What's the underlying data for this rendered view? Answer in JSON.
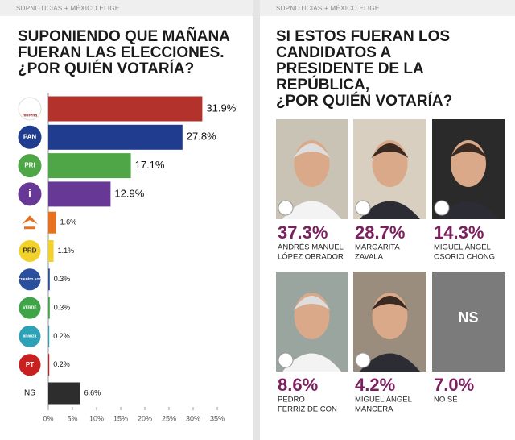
{
  "chart_data": [
    {
      "type": "bar",
      "source": "SDPNOTICIAS + MÉXICO ELIGE",
      "title": [
        "SUPONIENDO QUE MAÑANA",
        "FUERAN LAS ELECCIONES.",
        "¿POR QUIÉN VOTARÍA?"
      ],
      "categories": [
        "morena",
        "PAN",
        "PRI",
        "i",
        null,
        "PRD",
        "encuentro social",
        "VERDE",
        "alianza",
        "PT",
        "NS"
      ],
      "values": [
        31.9,
        27.8,
        17.1,
        12.9,
        1.6,
        1.1,
        0.3,
        0.3,
        0.2,
        0.2,
        6.6
      ],
      "value_labels": [
        "31.9%",
        "27.8%",
        "17.1%",
        "12.9%",
        "1.6%",
        "1.1%",
        "0.3%",
        "0.3%",
        "0.2%",
        "0.2%",
        "6.6%"
      ],
      "colors": [
        "#b3322b",
        "#203c8f",
        "#4ea646",
        "#673896",
        "#e8711f",
        "#f2d22a",
        "#2a4f9c",
        "#3fa348",
        "#2ea1b6",
        "#c81f1f",
        "#2d2d2d"
      ],
      "xlim": [
        0,
        35
      ],
      "xticks": [
        {
          "value": 0,
          "label": "0%"
        },
        {
          "value": 5,
          "label": "5%"
        },
        {
          "value": 10,
          "label": "10%"
        },
        {
          "value": 15,
          "label": "15%"
        },
        {
          "value": 20,
          "label": "20%"
        },
        {
          "value": 25,
          "label": "25%"
        },
        {
          "value": 30,
          "label": "30%"
        },
        {
          "value": 35,
          "label": "35%"
        }
      ]
    },
    {
      "type": "candidates",
      "source": "SDPNOTICIAS + MÉXICO ELIGE",
      "title": [
        "SI ESTOS FUERAN LOS",
        "CANDIDATOS A",
        "PRESIDENTE DE LA",
        "REPÚBLICA,",
        "¿POR QUIÉN VOTARÍA?"
      ],
      "candidates": [
        {
          "name": [
            "ANDRÉS MANUEL",
            "LÓPEZ OBRADOR"
          ],
          "value": 37.3,
          "value_label": "37.3%"
        },
        {
          "name": [
            "MARGARITA",
            "ZAVALA"
          ],
          "value": 28.7,
          "value_label": "28.7%"
        },
        {
          "name": [
            "MIGUEL ÁNGEL",
            "OSORIO CHONG"
          ],
          "value": 14.3,
          "value_label": "14.3%"
        },
        {
          "name": [
            "PEDRO",
            "FERRIZ DE CON"
          ],
          "value": 8.6,
          "value_label": "8.6%"
        },
        {
          "name": [
            "MIGUEL ÁNGEL",
            "MANCERA"
          ],
          "value": 4.2,
          "value_label": "4.2%"
        },
        {
          "name": [
            "NO SÉ"
          ],
          "value": 7.0,
          "value_label": "7.0%",
          "tile_text": "NS"
        }
      ]
    }
  ]
}
